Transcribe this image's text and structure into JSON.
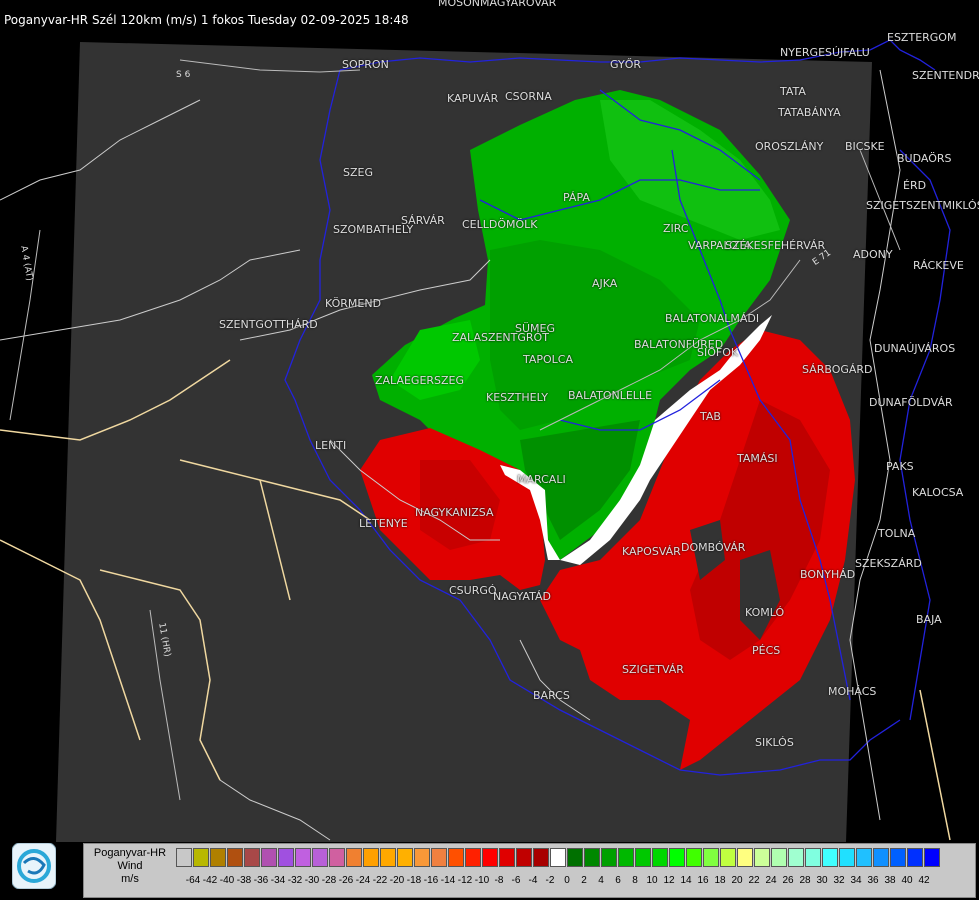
{
  "title": "Poganyvar-HR Szél 120km (m/s) 1 fokos Tuesday 02-09-2025 18:48",
  "map": {
    "places": [
      {
        "name": "MOSONMAGYARÓVÁR"
      },
      {
        "name": "ESZTERGOM"
      },
      {
        "name": "NYERGESÚJFALU"
      },
      {
        "name": "SZENTENDRE"
      },
      {
        "name": "SOPRON"
      },
      {
        "name": "GYŐR"
      },
      {
        "name": "KAPUVÁR"
      },
      {
        "name": "CSORNA"
      },
      {
        "name": "TATA"
      },
      {
        "name": "TATABÁNYA"
      },
      {
        "name": "PÁPA"
      },
      {
        "name": "ZIRC"
      },
      {
        "name": "OROSZLÁNY"
      },
      {
        "name": "BICSKE"
      },
      {
        "name": "BUDAÖRS"
      },
      {
        "name": "ÉRD"
      },
      {
        "name": "SZIGETSZENTMIKLÓS"
      },
      {
        "name": "SZEG"
      },
      {
        "name": "SÁRVÁR"
      },
      {
        "name": "CELLDÖMÖLK"
      },
      {
        "name": "SZOMBATHELY"
      },
      {
        "name": "VARPALOTA"
      },
      {
        "name": "SZÉKESFEHÉRVÁR"
      },
      {
        "name": "DOMBÓVÁR"
      },
      {
        "name": "ADONY"
      },
      {
        "name": "RÁCKEVE"
      },
      {
        "name": "KÖRMEND"
      },
      {
        "name": "SZENTGOTTHÁRD"
      },
      {
        "name": "AJKA"
      },
      {
        "name": "BALATONALMÁDI"
      },
      {
        "name": "SÜMEG"
      },
      {
        "name": "ZALASZENTGRÓT"
      },
      {
        "name": "TAPOLCA"
      },
      {
        "name": "BALATONFÜRED"
      },
      {
        "name": "SIÓFOK"
      },
      {
        "name": "SÁRBOGÁRD"
      },
      {
        "name": "DUNAÚJVÁROS"
      },
      {
        "name": "ZALAEGERSZEG"
      },
      {
        "name": "KESZTHELY"
      },
      {
        "name": "BALATONLELLE"
      },
      {
        "name": "DUNAFÖLDVÁR"
      },
      {
        "name": "TAB"
      },
      {
        "name": "LENTI"
      },
      {
        "name": "TAMÁSI"
      },
      {
        "name": "PAKS"
      },
      {
        "name": "MARCALI"
      },
      {
        "name": "KALOCSA"
      },
      {
        "name": "LETENYE"
      },
      {
        "name": "NAGYKANIZSA"
      },
      {
        "name": "TOLNA"
      },
      {
        "name": "KAPOSVÁR"
      },
      {
        "name": "SZEKSZÁRD"
      },
      {
        "name": "BONYHÁD"
      },
      {
        "name": "CSURGÓ"
      },
      {
        "name": "NAGYATÁD"
      },
      {
        "name": "KOMLÓ"
      },
      {
        "name": "BAJA"
      },
      {
        "name": "PÉCS"
      },
      {
        "name": "SZIGETVÁR"
      },
      {
        "name": "MOHÁCS"
      },
      {
        "name": "BARCS"
      },
      {
        "name": "SIKLÓS"
      }
    ],
    "roads": [
      {
        "label": "S 6"
      },
      {
        "label": "A 4 (AT)"
      },
      {
        "label": "E 71"
      },
      {
        "label": "11 (HR)"
      }
    ],
    "colors": {
      "background": "#000000",
      "radar_domain": "#333333",
      "borders": "#2222dd",
      "roads": "#f0d8a0",
      "rivers": "#cccccc"
    }
  },
  "legend": {
    "title_lines": [
      "Poganyvar-HR",
      "Wind",
      "m/s"
    ],
    "swatches": [
      "#c8c8c8",
      "#b8b800",
      "#b08000",
      "#b05010",
      "#a84848",
      "#b050b0",
      "#a050e0",
      "#c060e0",
      "#b860d8",
      "#d060a0",
      "#f08030",
      "#ffa000",
      "#ffa800",
      "#ffb000",
      "#f89838",
      "#f08040",
      "#ff5000",
      "#ff2000",
      "#ff0000",
      "#e00000",
      "#c00000",
      "#a80000",
      "#ffffff",
      "#007000",
      "#008800",
      "#00a000",
      "#00b800",
      "#00c800",
      "#00d800",
      "#00ff00",
      "#40ff00",
      "#80ff40",
      "#c0ff40",
      "#ffff80",
      "#ccff99",
      "#b0ffb0",
      "#a0ffd0",
      "#80ffe0",
      "#40ffff",
      "#20e0ff",
      "#20c0ff",
      "#1090ff",
      "#0060ff",
      "#0030ff",
      "#0000ff"
    ],
    "ticks": [
      "-64",
      "-42",
      "-40",
      "-38",
      "-36",
      "-34",
      "-32",
      "-30",
      "-28",
      "-26",
      "-24",
      "-22",
      "-20",
      "-18",
      "-16",
      "-14",
      "-12",
      "-10",
      "-8",
      "-6",
      "-4",
      "-2",
      "0",
      "2",
      "4",
      "6",
      "8",
      "10",
      "12",
      "14",
      "16",
      "18",
      "20",
      "22",
      "24",
      "26",
      "28",
      "30",
      "32",
      "34",
      "36",
      "38",
      "40",
      "42"
    ]
  }
}
